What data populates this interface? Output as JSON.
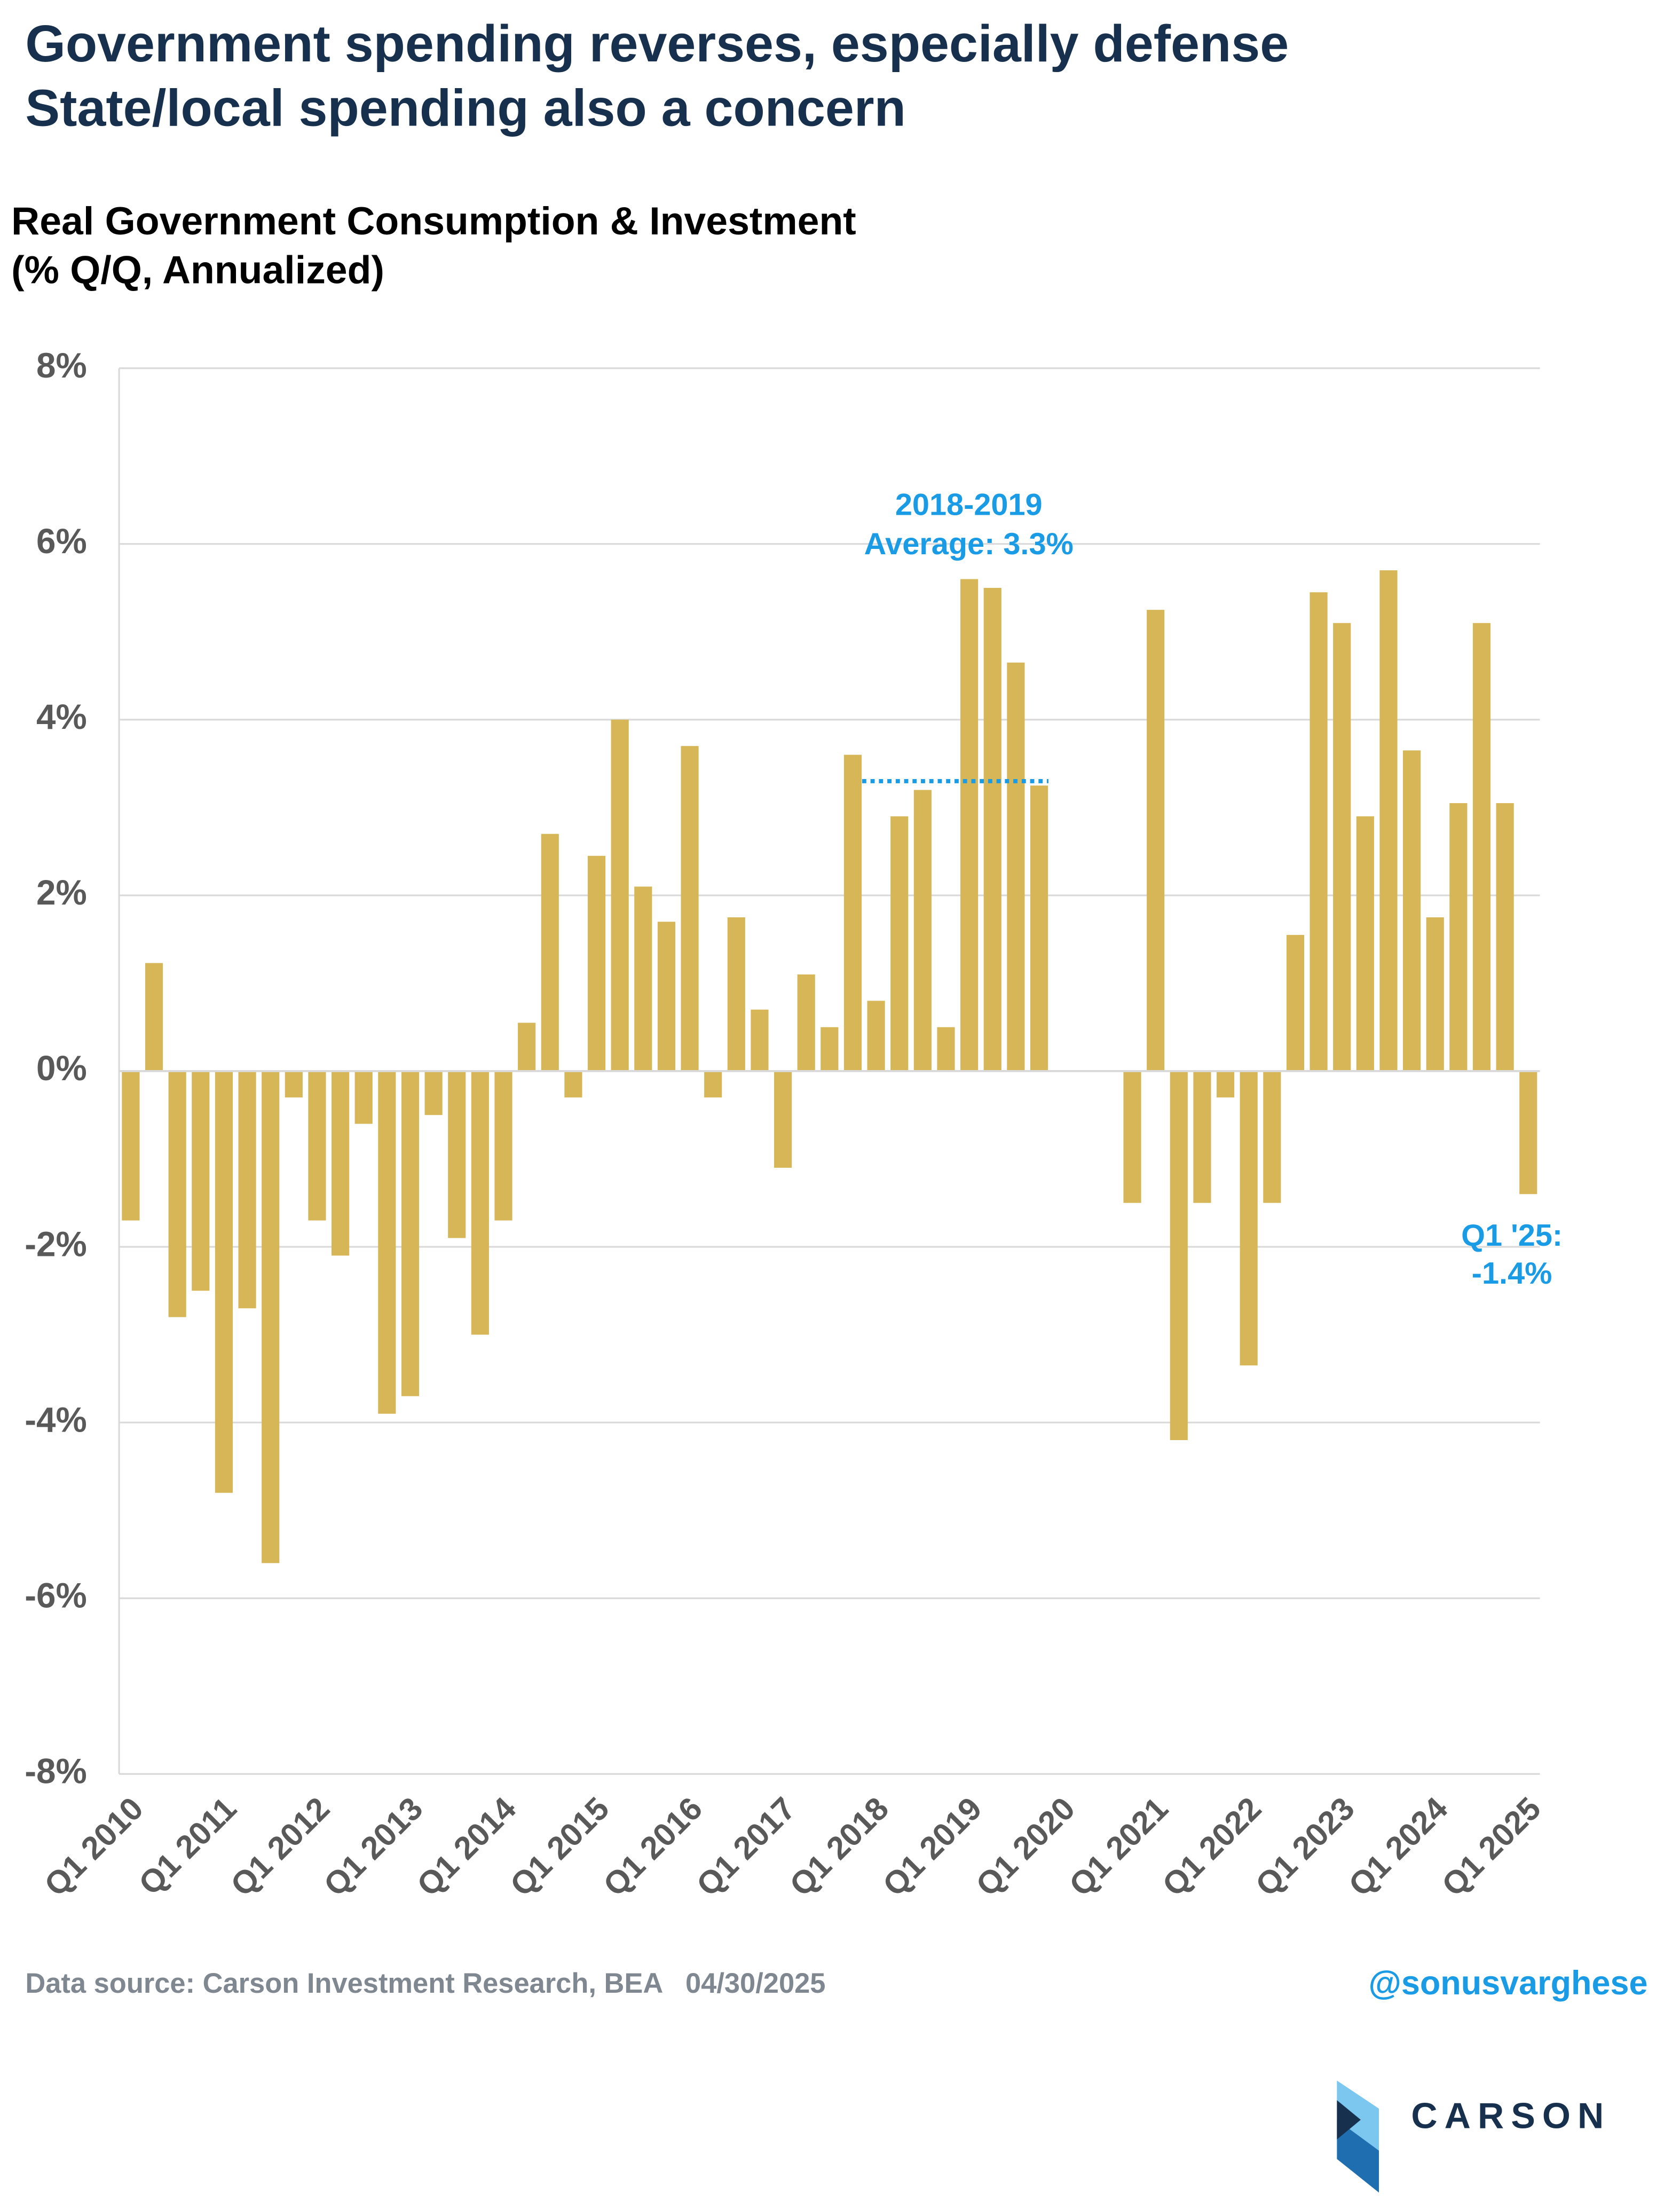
{
  "chart_data": {
    "type": "bar",
    "title_lines": [
      "Government spending reverses, especially defense",
      "State/local spending also a concern"
    ],
    "axis_label_lines": [
      "Real Government Consumption & Investment",
      "(% Q/Q, Annualized)"
    ],
    "categories": [
      "Q1 2010",
      null,
      null,
      null,
      "Q1 2011",
      null,
      null,
      null,
      "Q1 2012",
      null,
      null,
      null,
      "Q1 2013",
      null,
      null,
      null,
      "Q1 2014",
      null,
      null,
      null,
      "Q1 2015",
      null,
      null,
      null,
      "Q1 2016",
      null,
      null,
      null,
      "Q1 2017",
      null,
      null,
      null,
      "Q1 2018",
      null,
      null,
      null,
      "Q1 2019",
      null,
      null,
      null,
      "Q1 2020",
      null,
      null,
      null,
      "Q1 2021",
      null,
      null,
      null,
      "Q1 2022",
      null,
      null,
      null,
      "Q1 2023",
      null,
      null,
      null,
      "Q1 2024",
      null,
      null,
      null,
      "Q1 2025"
    ],
    "values": [
      -1.7,
      1.23,
      -2.8,
      -2.5,
      -4.8,
      -2.7,
      -5.6,
      -0.3,
      -1.7,
      -2.1,
      -0.6,
      -3.9,
      -3.7,
      -0.5,
      -1.9,
      -3.0,
      -1.7,
      0.55,
      2.7,
      -0.3,
      2.45,
      4.0,
      2.1,
      1.7,
      3.7,
      -0.3,
      1.75,
      0.7,
      -1.1,
      1.1,
      0.5,
      3.6,
      0.8,
      2.9,
      3.2,
      0.5,
      5.6,
      5.5,
      4.65,
      3.25,
      null,
      null,
      null,
      -1.5,
      5.25,
      -4.2,
      -1.5,
      -0.3,
      -3.35,
      -1.5,
      1.55,
      5.45,
      5.1,
      2.9,
      5.7,
      3.65,
      1.75,
      3.05,
      5.1,
      3.05,
      -1.4
    ],
    "color": "#d6b656",
    "ylim": [
      -8,
      8
    ],
    "yticks": [
      {
        "value": -8,
        "label": "-8%"
      },
      {
        "value": -6,
        "label": "-6%"
      },
      {
        "value": -4,
        "label": "-4%"
      },
      {
        "value": -2,
        "label": "-2%"
      },
      {
        "value": 0,
        "label": "0%"
      },
      {
        "value": 2,
        "label": "2%"
      },
      {
        "value": 4,
        "label": "4%"
      },
      {
        "value": 6,
        "label": "6%"
      },
      {
        "value": 8,
        "label": "8%"
      }
    ],
    "grid": true,
    "reference_line": {
      "value": 3.3,
      "color": "#1a9be6"
    },
    "annotations": [
      {
        "lines": [
          "2018-2019",
          "Average: 3.3%"
        ]
      },
      {
        "lines": [
          "Q1 '25:",
          "-1.4%"
        ]
      }
    ],
    "source": "Data source: Carson Investment Research, BEA   04/30/2025",
    "handle": "@sonusvarghese",
    "brand": "CARSON"
  }
}
